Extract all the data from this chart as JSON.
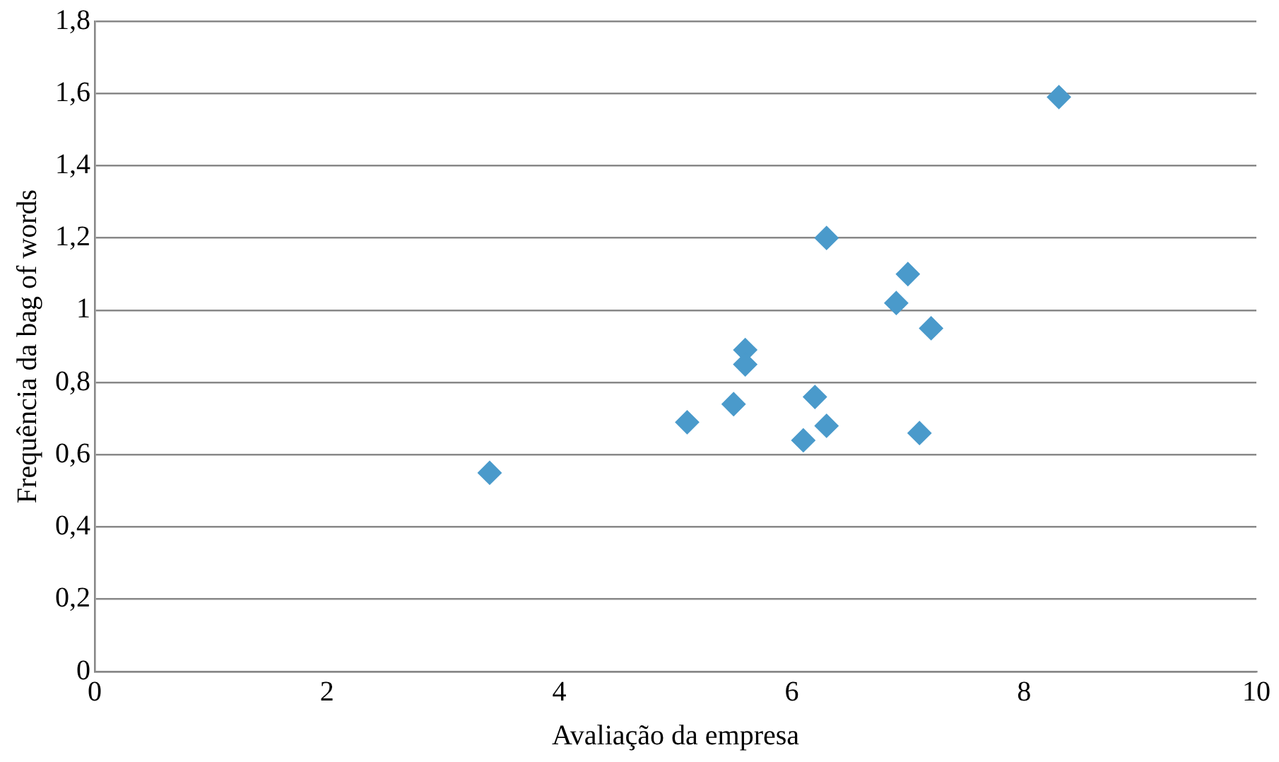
{
  "chart_data": {
    "type": "scatter",
    "xlabel": "Avaliação da empresa",
    "ylabel": "Frequência da bag of words",
    "x": [
      3.4,
      5.1,
      5.5,
      5.6,
      5.6,
      6.1,
      6.2,
      6.3,
      6.3,
      6.9,
      7.0,
      7.1,
      7.2,
      8.3
    ],
    "series": [
      {
        "color": "#4a9acb",
        "values": [
          0.55,
          0.69,
          0.74,
          0.89,
          0.85,
          0.64,
          0.76,
          0.68,
          1.2,
          1.02,
          1.1,
          0.66,
          0.95,
          1.59
        ]
      }
    ],
    "xlim": [
      0,
      10
    ],
    "xticks": [
      0,
      2,
      4,
      6,
      8,
      10
    ],
    "ylim": [
      0,
      1.8
    ],
    "yticks": [
      0,
      {
        "value": 0.2,
        "label": "0,2"
      },
      {
        "value": 0.4,
        "label": "0,4"
      },
      {
        "value": 0.6,
        "label": "0,6"
      },
      {
        "value": 0.8,
        "label": "0,8"
      },
      1,
      {
        "value": 1.2,
        "label": "1,2"
      },
      {
        "value": 1.4,
        "label": "1,4"
      },
      {
        "value": 1.6,
        "label": "1,6"
      },
      {
        "value": 1.8,
        "label": "1,8"
      }
    ],
    "grid": "y",
    "marker": "diamond",
    "legend": false
  }
}
